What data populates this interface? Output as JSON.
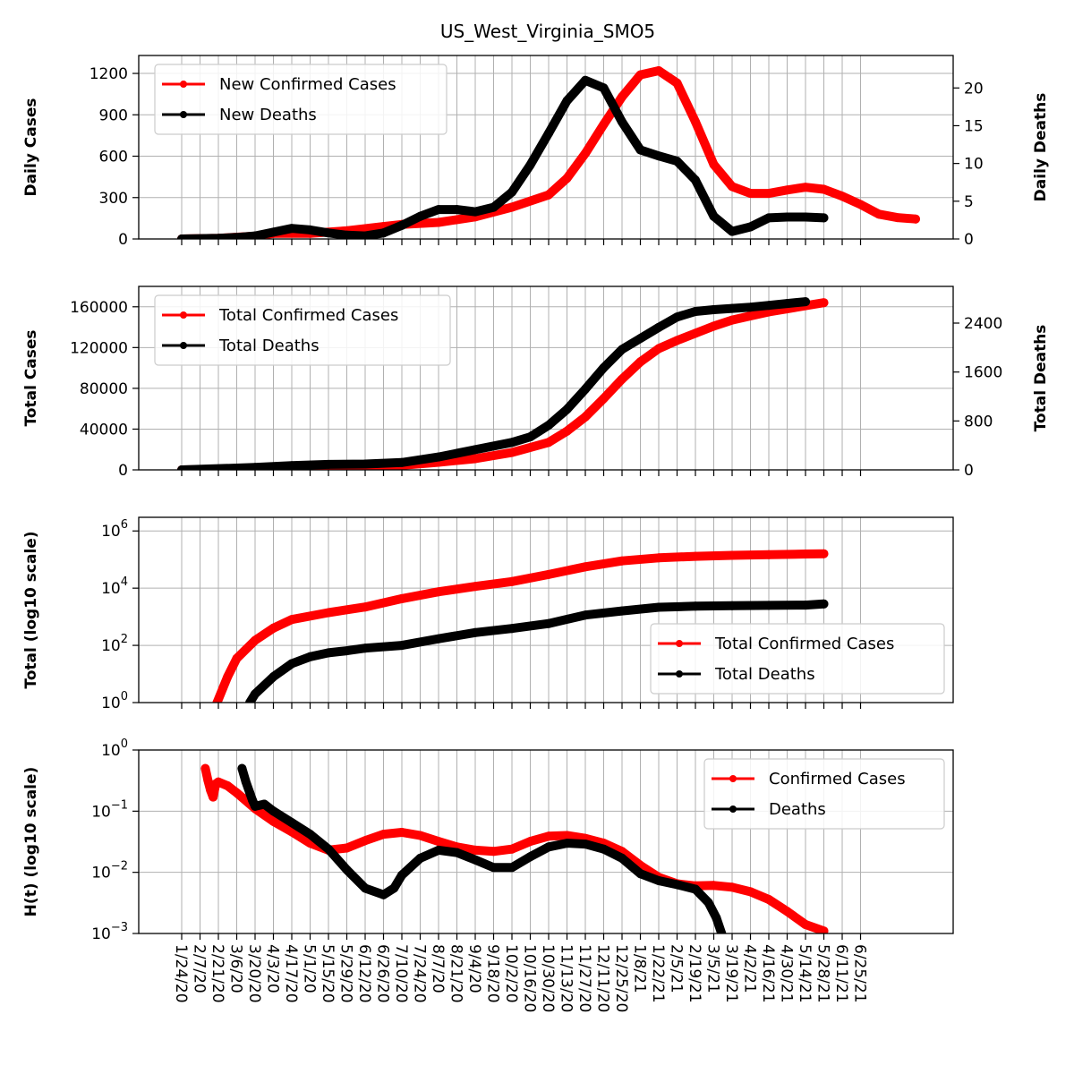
{
  "title": "US_West_Virginia_SMO5",
  "colors": {
    "confirmed": "#ff0000",
    "deaths": "#000000",
    "grid": "#b0b0b0"
  },
  "date_ticks": [
    "1/24/20",
    "2/7/20",
    "2/21/20",
    "3/6/20",
    "3/20/20",
    "4/3/20",
    "4/17/20",
    "5/1/20",
    "5/15/20",
    "5/29/20",
    "6/12/20",
    "6/26/20",
    "7/10/20",
    "7/24/20",
    "8/7/20",
    "8/21/20",
    "9/4/20",
    "9/18/20",
    "10/2/20",
    "10/16/20",
    "10/30/20",
    "11/13/20",
    "11/27/20",
    "12/11/20",
    "12/25/20",
    "1/8/21",
    "1/22/21",
    "2/5/21",
    "2/19/21",
    "3/5/21",
    "3/19/21",
    "4/2/21",
    "4/16/21",
    "4/30/21",
    "5/14/21",
    "5/28/21",
    "6/11/21",
    "6/25/21"
  ],
  "chart_data": [
    {
      "type": "line",
      "ylabel": "Daily Cases",
      "ylabel_right": "Daily Deaths",
      "ylim": [
        0,
        1330
      ],
      "ylim_right": [
        0,
        24.3
      ],
      "yticks": [
        "0",
        "300",
        "600",
        "900",
        "1200"
      ],
      "yticks_right": [
        "0",
        "5",
        "10",
        "15",
        "20"
      ],
      "grid": true,
      "legend": "top-left",
      "series": [
        {
          "name": "New Confirmed Cases",
          "axis": "left",
          "points": [
            [
              0,
              0
            ],
            [
              28,
              5
            ],
            [
              56,
              20
            ],
            [
              70,
              40
            ],
            [
              98,
              40
            ],
            [
              126,
              60
            ],
            [
              154,
              90
            ],
            [
              168,
              105
            ],
            [
              196,
              120
            ],
            [
              224,
              160
            ],
            [
              252,
              230
            ],
            [
              280,
              320
            ],
            [
              294,
              440
            ],
            [
              308,
              620
            ],
            [
              322,
              830
            ],
            [
              336,
              1030
            ],
            [
              350,
              1190
            ],
            [
              364,
              1220
            ],
            [
              378,
              1130
            ],
            [
              392,
              850
            ],
            [
              406,
              540
            ],
            [
              420,
              380
            ],
            [
              434,
              330
            ],
            [
              448,
              330
            ],
            [
              462,
              355
            ],
            [
              476,
              375
            ],
            [
              490,
              360
            ],
            [
              504,
              310
            ],
            [
              518,
              250
            ],
            [
              532,
              180
            ],
            [
              546,
              155
            ],
            [
              560,
              145
            ]
          ]
        },
        {
          "name": "New Deaths",
          "axis": "right",
          "points": [
            [
              0,
              0
            ],
            [
              28,
              0.1
            ],
            [
              42,
              0.2
            ],
            [
              56,
              0.4
            ],
            [
              70,
              0.9
            ],
            [
              84,
              1.4
            ],
            [
              98,
              1.2
            ],
            [
              112,
              0.8
            ],
            [
              126,
              0.5
            ],
            [
              140,
              0.4
            ],
            [
              154,
              0.8
            ],
            [
              168,
              1.8
            ],
            [
              182,
              3.0
            ],
            [
              196,
              3.9
            ],
            [
              210,
              3.9
            ],
            [
              224,
              3.6
            ],
            [
              238,
              4.2
            ],
            [
              252,
              6.2
            ],
            [
              266,
              9.8
            ],
            [
              280,
              14.0
            ],
            [
              294,
              18.3
            ],
            [
              308,
              21.0
            ],
            [
              322,
              20.0
            ],
            [
              336,
              15.5
            ],
            [
              350,
              11.8
            ],
            [
              364,
              11.0
            ],
            [
              378,
              10.3
            ],
            [
              392,
              7.8
            ],
            [
              406,
              3.0
            ],
            [
              420,
              1.0
            ],
            [
              434,
              1.6
            ],
            [
              448,
              2.8
            ],
            [
              462,
              2.9
            ],
            [
              476,
              2.9
            ],
            [
              490,
              2.8
            ]
          ]
        }
      ]
    },
    {
      "type": "line",
      "ylabel": "Total Cases",
      "ylabel_right": "Total Deaths",
      "ylim": [
        0,
        180000
      ],
      "ylim_right": [
        0,
        3000
      ],
      "yticks": [
        "0",
        "40000",
        "80000",
        "120000",
        "160000"
      ],
      "yticks_right": [
        "0",
        "800",
        "1600",
        "2400"
      ],
      "grid": true,
      "legend": "top-left",
      "series": [
        {
          "name": "Total Confirmed Cases",
          "axis": "left",
          "points": [
            [
              0,
              0
            ],
            [
              56,
              500
            ],
            [
              112,
              2000
            ],
            [
              168,
              4500
            ],
            [
              196,
              7500
            ],
            [
              224,
              11000
            ],
            [
              252,
              17000
            ],
            [
              280,
              27000
            ],
            [
              294,
              38000
            ],
            [
              308,
              52000
            ],
            [
              322,
              70000
            ],
            [
              336,
              89000
            ],
            [
              350,
              106000
            ],
            [
              364,
              119000
            ],
            [
              378,
              127000
            ],
            [
              392,
              134000
            ],
            [
              406,
              141000
            ],
            [
              420,
              147000
            ],
            [
              434,
              151000
            ],
            [
              448,
              155000
            ],
            [
              462,
              158000
            ],
            [
              476,
              161000
            ],
            [
              490,
              164000
            ]
          ]
        },
        {
          "name": "Total Deaths",
          "axis": "right",
          "points": [
            [
              0,
              0
            ],
            [
              56,
              40
            ],
            [
              84,
              70
            ],
            [
              112,
              90
            ],
            [
              140,
              95
            ],
            [
              168,
              120
            ],
            [
              196,
              210
            ],
            [
              224,
              330
            ],
            [
              252,
              450
            ],
            [
              266,
              540
            ],
            [
              280,
              730
            ],
            [
              294,
              990
            ],
            [
              308,
              1320
            ],
            [
              322,
              1670
            ],
            [
              336,
              1970
            ],
            [
              350,
              2150
            ],
            [
              364,
              2330
            ],
            [
              378,
              2500
            ],
            [
              392,
              2590
            ],
            [
              406,
              2620
            ],
            [
              420,
              2640
            ],
            [
              434,
              2660
            ],
            [
              448,
              2690
            ],
            [
              462,
              2720
            ],
            [
              476,
              2750
            ]
          ]
        }
      ]
    },
    {
      "type": "line",
      "ylabel": "Total (log10 scale)",
      "yscale": "log10",
      "ylim": [
        1,
        3000000
      ],
      "yticks": [
        "10^0",
        "10^2",
        "10^4",
        "10^6"
      ],
      "grid": true,
      "legend": "lower-right",
      "series": [
        {
          "name": "Total Confirmed Cases",
          "points": [
            [
              27,
              1
            ],
            [
              35,
              8
            ],
            [
              42,
              35
            ],
            [
              56,
              150
            ],
            [
              70,
              400
            ],
            [
              84,
              800
            ],
            [
              112,
              1400
            ],
            [
              140,
              2200
            ],
            [
              168,
              4300
            ],
            [
              196,
              7500
            ],
            [
              224,
              11500
            ],
            [
              252,
              17000
            ],
            [
              280,
              30000
            ],
            [
              308,
              56000
            ],
            [
              336,
              90000
            ],
            [
              364,
              115000
            ],
            [
              392,
              130000
            ],
            [
              420,
              140000
            ],
            [
              448,
              148000
            ],
            [
              476,
              156000
            ],
            [
              490,
              160000
            ]
          ]
        },
        {
          "name": "Total Deaths",
          "points": [
            [
              52,
              1
            ],
            [
              56,
              2
            ],
            [
              70,
              8
            ],
            [
              84,
              23
            ],
            [
              98,
              40
            ],
            [
              112,
              55
            ],
            [
              126,
              65
            ],
            [
              140,
              80
            ],
            [
              168,
              100
            ],
            [
              196,
              170
            ],
            [
              224,
              280
            ],
            [
              252,
              390
            ],
            [
              280,
              580
            ],
            [
              308,
              1150
            ],
            [
              336,
              1600
            ],
            [
              364,
              2150
            ],
            [
              392,
              2350
            ],
            [
              420,
              2450
            ],
            [
              448,
              2500
            ],
            [
              476,
              2550
            ],
            [
              490,
              2800
            ]
          ]
        }
      ]
    },
    {
      "type": "line",
      "ylabel": "H(t) (log10 scale)",
      "yscale": "log10",
      "ylim": [
        0.001,
        1
      ],
      "yticks": [
        "10^-3",
        "10^-2",
        "10^-1",
        "10^0"
      ],
      "grid": true,
      "legend": "top-right",
      "series": [
        {
          "name": "Confirmed Cases",
          "points": [
            [
              18,
              0.5
            ],
            [
              20,
              0.32
            ],
            [
              22,
              0.22
            ],
            [
              24,
              0.17
            ],
            [
              26,
              0.28
            ],
            [
              28,
              0.3
            ],
            [
              35,
              0.26
            ],
            [
              42,
              0.2
            ],
            [
              56,
              0.11
            ],
            [
              70,
              0.068
            ],
            [
              84,
              0.046
            ],
            [
              98,
              0.03
            ],
            [
              112,
              0.023
            ],
            [
              126,
              0.025
            ],
            [
              140,
              0.033
            ],
            [
              154,
              0.042
            ],
            [
              168,
              0.045
            ],
            [
              182,
              0.04
            ],
            [
              196,
              0.032
            ],
            [
              210,
              0.026
            ],
            [
              224,
              0.023
            ],
            [
              238,
              0.022
            ],
            [
              252,
              0.024
            ],
            [
              266,
              0.032
            ],
            [
              280,
              0.039
            ],
            [
              294,
              0.04
            ],
            [
              308,
              0.036
            ],
            [
              322,
              0.03
            ],
            [
              336,
              0.022
            ],
            [
              350,
              0.013
            ],
            [
              364,
              0.0083
            ],
            [
              378,
              0.0065
            ],
            [
              392,
              0.006
            ],
            [
              406,
              0.0061
            ],
            [
              420,
              0.0057
            ],
            [
              434,
              0.0048
            ],
            [
              448,
              0.0036
            ],
            [
              462,
              0.0023
            ],
            [
              476,
              0.0014
            ],
            [
              490,
              0.0011
            ]
          ]
        },
        {
          "name": "Deaths",
          "points": [
            [
              46,
              0.5
            ],
            [
              49,
              0.3
            ],
            [
              52,
              0.2
            ],
            [
              54,
              0.15
            ],
            [
              56,
              0.12
            ],
            [
              63,
              0.13
            ],
            [
              70,
              0.1
            ],
            [
              84,
              0.065
            ],
            [
              98,
              0.042
            ],
            [
              112,
              0.024
            ],
            [
              126,
              0.011
            ],
            [
              140,
              0.0055
            ],
            [
              154,
              0.0043
            ],
            [
              162,
              0.0055
            ],
            [
              168,
              0.009
            ],
            [
              182,
              0.017
            ],
            [
              196,
              0.023
            ],
            [
              210,
              0.021
            ],
            [
              224,
              0.016
            ],
            [
              238,
              0.012
            ],
            [
              252,
              0.012
            ],
            [
              266,
              0.018
            ],
            [
              280,
              0.026
            ],
            [
              294,
              0.03
            ],
            [
              308,
              0.029
            ],
            [
              322,
              0.024
            ],
            [
              336,
              0.017
            ],
            [
              350,
              0.0095
            ],
            [
              364,
              0.0073
            ],
            [
              378,
              0.0063
            ],
            [
              392,
              0.0053
            ],
            [
              402,
              0.0032
            ],
            [
              408,
              0.0018
            ],
            [
              412,
              0.001
            ]
          ]
        }
      ]
    }
  ]
}
